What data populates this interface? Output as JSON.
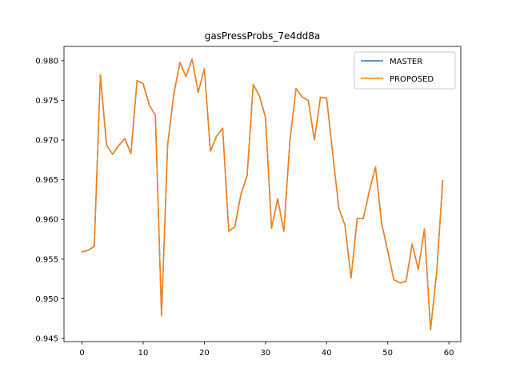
{
  "chart_data": {
    "type": "line",
    "title": "gasPressProbs_7e4dd8a",
    "xlabel": "",
    "ylabel": "",
    "xlim": [
      -2.95,
      61.95
    ],
    "ylim": [
      0.9446,
      0.9818
    ],
    "xticks": [
      0,
      10,
      20,
      30,
      40,
      50,
      60
    ],
    "yticks": [
      0.945,
      0.95,
      0.955,
      0.96,
      0.965,
      0.97,
      0.975,
      0.98
    ],
    "ytick_labels": [
      "0.945",
      "0.950",
      "0.955",
      "0.960",
      "0.965",
      "0.970",
      "0.975",
      "0.980"
    ],
    "grid": false,
    "legend_position": "top-right",
    "x": [
      0,
      1,
      2,
      3,
      4,
      5,
      6,
      7,
      8,
      9,
      10,
      11,
      12,
      13,
      14,
      15,
      16,
      17,
      18,
      19,
      20,
      21,
      22,
      23,
      24,
      25,
      26,
      27,
      28,
      29,
      30,
      31,
      32,
      33,
      34,
      35,
      36,
      37,
      38,
      39,
      40,
      41,
      42,
      43,
      44,
      45,
      46,
      47,
      48,
      49,
      50,
      51,
      52,
      53,
      54,
      55,
      56,
      57,
      58,
      59
    ],
    "series": [
      {
        "name": "MASTER",
        "color": "#1f77b4",
        "values": [
          0.9559,
          0.9561,
          0.9566,
          0.9782,
          0.9694,
          0.9682,
          0.9693,
          0.9702,
          0.9683,
          0.9775,
          0.9771,
          0.9744,
          0.9731,
          0.9479,
          0.9694,
          0.9757,
          0.9798,
          0.978,
          0.9802,
          0.976,
          0.979,
          0.9686,
          0.9705,
          0.9715,
          0.9585,
          0.9591,
          0.9632,
          0.9655,
          0.977,
          0.9756,
          0.9729,
          0.9589,
          0.9626,
          0.9585,
          0.9699,
          0.9765,
          0.9754,
          0.975,
          0.97,
          0.9754,
          0.9753,
          0.9683,
          0.9614,
          0.9593,
          0.9526,
          0.9601,
          0.9601,
          0.9636,
          0.9666,
          0.9595,
          0.956,
          0.9524,
          0.952,
          0.9522,
          0.9569,
          0.9537,
          0.9588,
          0.9461,
          0.9533,
          0.9649
        ]
      },
      {
        "name": "PROPOSED",
        "color": "#ff7f0e",
        "values": [
          0.9559,
          0.9561,
          0.9566,
          0.9782,
          0.9694,
          0.9682,
          0.9693,
          0.9702,
          0.9683,
          0.9775,
          0.9771,
          0.9744,
          0.9731,
          0.9479,
          0.9694,
          0.9757,
          0.9798,
          0.978,
          0.9802,
          0.976,
          0.979,
          0.9686,
          0.9705,
          0.9715,
          0.9585,
          0.9591,
          0.9632,
          0.9655,
          0.977,
          0.9756,
          0.9729,
          0.9589,
          0.9626,
          0.9585,
          0.9699,
          0.9765,
          0.9754,
          0.975,
          0.97,
          0.9754,
          0.9753,
          0.9683,
          0.9614,
          0.9593,
          0.9526,
          0.9601,
          0.9601,
          0.9636,
          0.9666,
          0.9595,
          0.956,
          0.9524,
          0.952,
          0.9522,
          0.9569,
          0.9537,
          0.9588,
          0.9461,
          0.9533,
          0.9649
        ]
      }
    ]
  }
}
